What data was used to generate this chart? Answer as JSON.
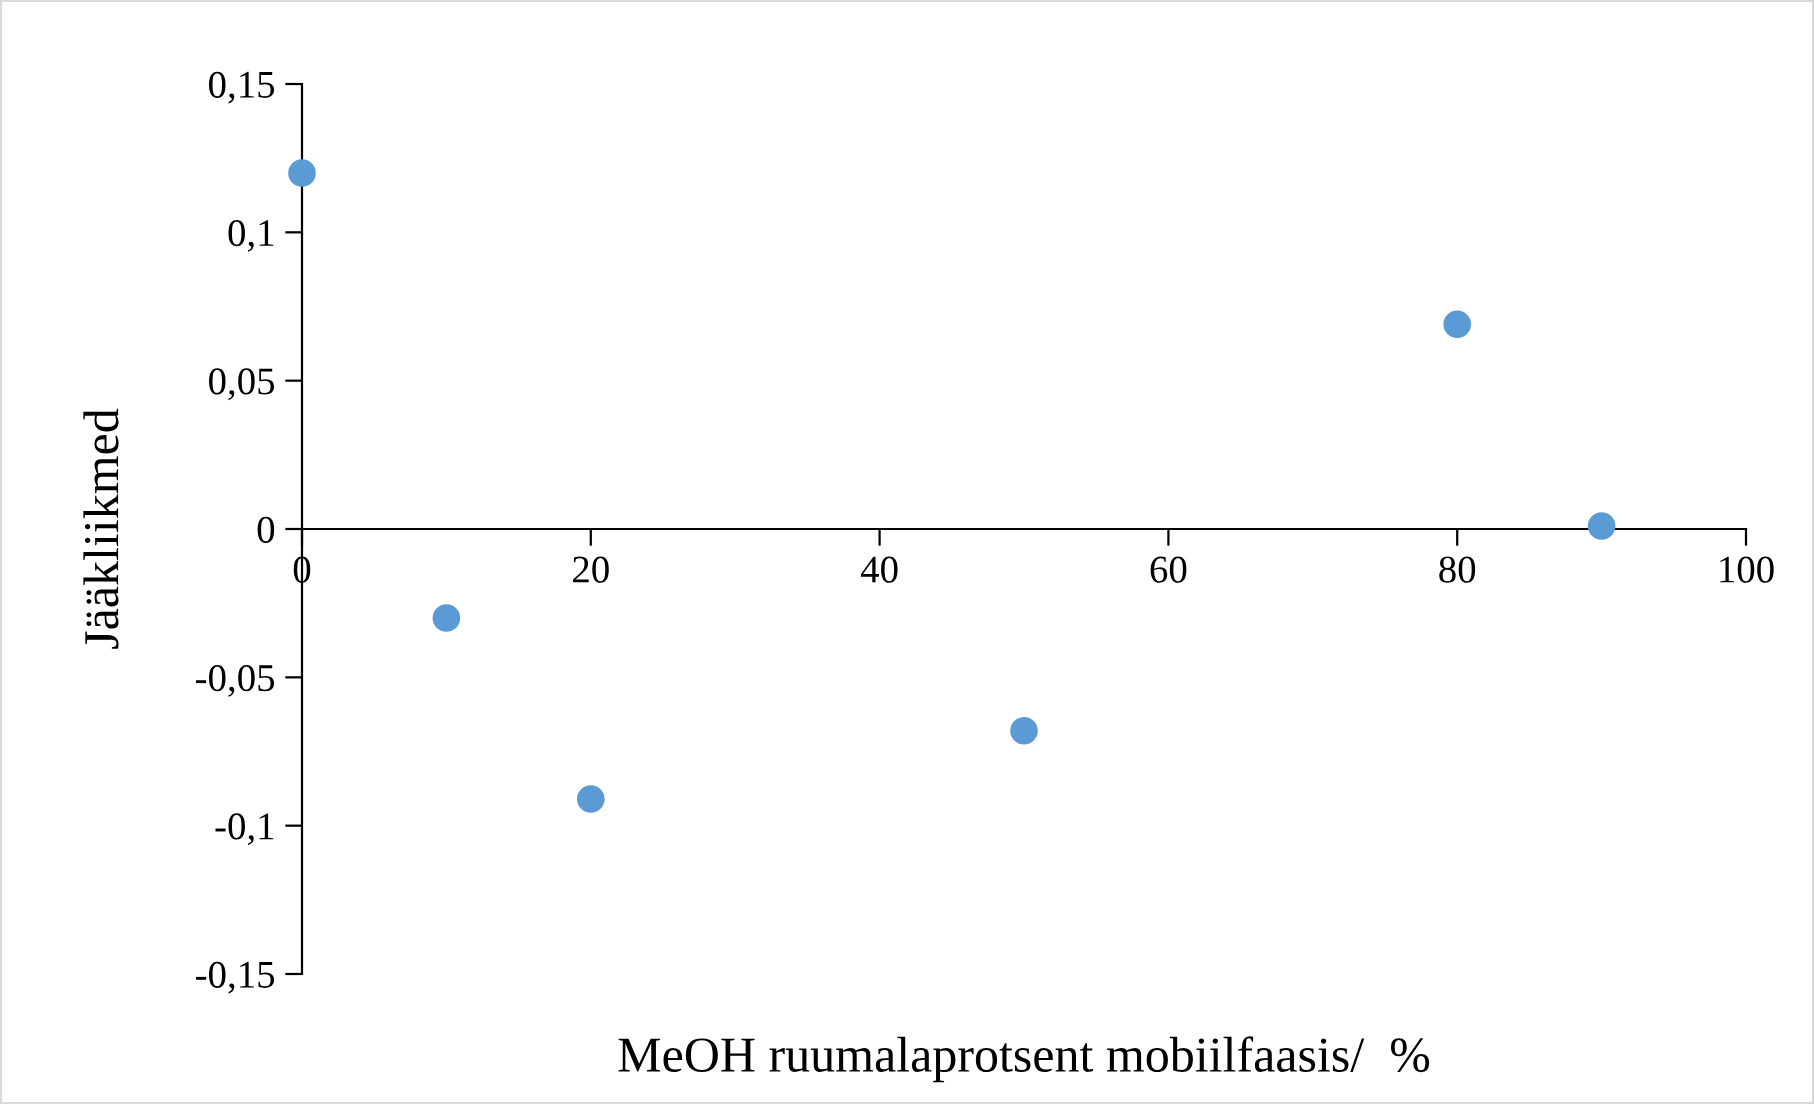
{
  "chart_data": {
    "type": "scatter",
    "xlabel": "MeOH ruumalaprotsent mobiilfaasis/  %",
    "ylabel": "Jääkliikmed",
    "x": [
      0,
      10,
      20,
      50,
      80,
      90
    ],
    "series": [
      {
        "color": "#5b9bd5",
        "values": [
          0.12,
          -0.03,
          -0.091,
          -0.068,
          0.069,
          0.001
        ]
      }
    ],
    "xlim": [
      0,
      100
    ],
    "xticks": [
      0,
      20,
      40,
      60,
      80,
      100
    ],
    "ylim": [
      -0.15,
      0.15
    ],
    "yticks": [
      {
        "value": -0.15,
        "label": "-0,15"
      },
      {
        "value": -0.1,
        "label": "-0,1"
      },
      {
        "value": -0.05,
        "label": "-0,05"
      },
      {
        "value": 0,
        "label": "0"
      },
      {
        "value": 0.05,
        "label": "0,05"
      },
      {
        "value": 0.1,
        "label": "0,1"
      },
      {
        "value": 0.15,
        "label": "0,15"
      }
    ],
    "grid": false,
    "legend": false,
    "marker": "circle"
  }
}
